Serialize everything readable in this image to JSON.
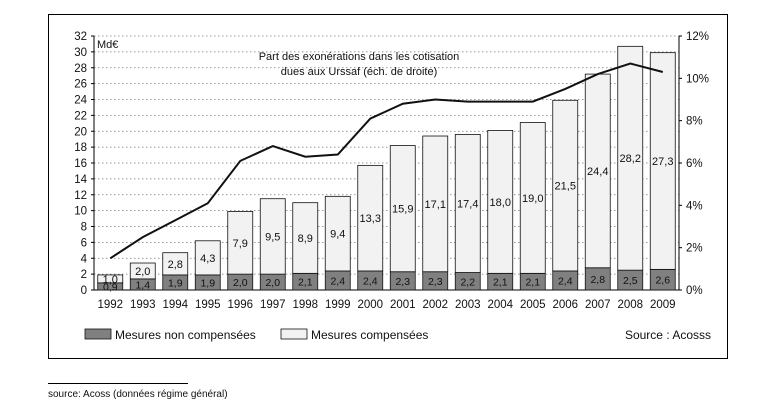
{
  "chart_data": {
    "type": "bar",
    "stacked": true,
    "categories": [
      "1992",
      "1993",
      "1994",
      "1995",
      "1996",
      "1997",
      "1998",
      "1999",
      "2000",
      "2001",
      "2002",
      "2003",
      "2004",
      "2005",
      "2006",
      "2007",
      "2008",
      "2009"
    ],
    "series": [
      {
        "name": "Mesures non compensées",
        "color": "#808080",
        "values": [
          0.9,
          1.4,
          1.9,
          1.9,
          2.0,
          2.0,
          2.1,
          2.4,
          2.4,
          2.3,
          2.3,
          2.2,
          2.1,
          2.1,
          2.4,
          2.8,
          2.5,
          2.6
        ],
        "value_labels": [
          "0,9",
          "1,4",
          "1,9",
          "1,9",
          "2,0",
          "2,0",
          "2,1",
          "2,4",
          "2,4",
          "2,3",
          "2,3",
          "2,2",
          "2,1",
          "2,1",
          "2,4",
          "2,8",
          "2,5",
          "2,6"
        ]
      },
      {
        "name": "Mesures compensées",
        "color": "#f2f2f2",
        "values": [
          1.0,
          2.0,
          2.8,
          4.3,
          7.9,
          9.5,
          8.9,
          9.4,
          13.3,
          15.9,
          17.1,
          17.4,
          18.0,
          19.0,
          21.5,
          24.4,
          28.2,
          27.3
        ],
        "value_labels": [
          "1,0",
          "2,0",
          "2,8",
          "4,3",
          "7,9",
          "9,5",
          "8,9",
          "9,4",
          "13,3",
          "15,9",
          "17,1",
          "17,4",
          "18,0",
          "19,0",
          "21,5",
          "24,4",
          "28,2",
          "27,3"
        ]
      }
    ],
    "line": {
      "axis": "right",
      "values": [
        1.5,
        2.5,
        3.3,
        4.1,
        6.1,
        6.8,
        6.3,
        6.4,
        8.1,
        8.8,
        9.0,
        8.9,
        8.9,
        8.9,
        9.5,
        10.2,
        10.7,
        10.3
      ],
      "annotation": [
        "Part des exonérations dans les cotisation",
        "dues aux Urssaf (éch. de droite)"
      ]
    },
    "y_left": {
      "unit": "Md€",
      "min": 0,
      "max": 32,
      "step": 2,
      "ticks": [
        "0",
        "2",
        "4",
        "6",
        "8",
        "10",
        "12",
        "14",
        "16",
        "18",
        "20",
        "22",
        "24",
        "26",
        "28",
        "30",
        "32"
      ]
    },
    "y_right": {
      "min": 0,
      "max": 12,
      "step": 2,
      "ticks": [
        "0%",
        "2%",
        "4%",
        "6%",
        "8%",
        "10%",
        "12%"
      ]
    },
    "grid": "horizontal-dotted",
    "legend_position": "bottom",
    "source_inside": "Source : Acosss"
  },
  "footnote": "source: Acoss (données régime général)"
}
